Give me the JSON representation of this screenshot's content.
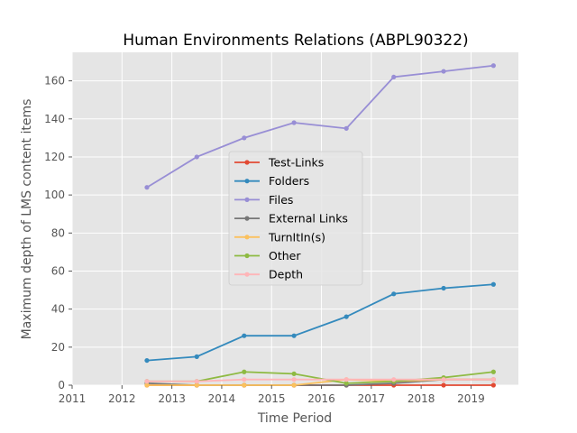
{
  "chart_data": {
    "type": "line",
    "title": "Human Environments Relations (ABPL90322)",
    "xlabel": "Time Period",
    "ylabel": "Maximum depth of LMS content items",
    "xlim": [
      2011,
      2019.95
    ],
    "ylim": [
      0,
      175
    ],
    "xticks": [
      2011,
      2012,
      2013,
      2014,
      2015,
      2016,
      2017,
      2018,
      2019
    ],
    "yticks": [
      0,
      20,
      40,
      60,
      80,
      100,
      120,
      140,
      160
    ],
    "grid": true,
    "legend_position": "center",
    "x": [
      2012.5,
      2013.5,
      2014.45,
      2015.45,
      2016.5,
      2017.45,
      2018.45,
      2019.45
    ],
    "series": [
      {
        "name": "Test-Links",
        "color": "#e24a33",
        "values": [
          0,
          0,
          0,
          0,
          0,
          0,
          0,
          0
        ]
      },
      {
        "name": "Folders",
        "color": "#348abd",
        "values": [
          13,
          15,
          26,
          26,
          36,
          48,
          51,
          53
        ]
      },
      {
        "name": "Files",
        "color": "#988ed5",
        "values": [
          104,
          120,
          130,
          138,
          135,
          162,
          165,
          168
        ]
      },
      {
        "name": "External Links",
        "color": "#777777",
        "values": [
          1,
          0,
          0,
          0,
          0,
          1,
          3,
          3
        ]
      },
      {
        "name": "TurnItIn(s)",
        "color": "#fbc15e",
        "values": [
          0,
          0,
          0,
          0,
          3,
          2,
          3,
          3
        ]
      },
      {
        "name": "Other",
        "color": "#8eba42",
        "values": [
          2,
          2,
          7,
          6,
          1,
          2,
          4,
          7
        ]
      },
      {
        "name": "Depth",
        "color": "#ffb5b8",
        "values": [
          2,
          2,
          3,
          3,
          3,
          3,
          3,
          3
        ]
      }
    ]
  }
}
